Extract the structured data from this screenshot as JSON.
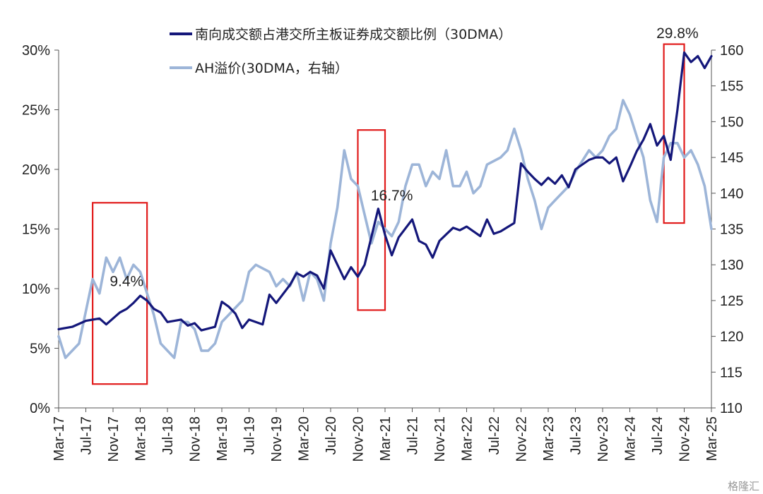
{
  "chart_data": {
    "type": "line",
    "x_ticks": [
      "Mar-17",
      "Jul-17",
      "Nov-17",
      "Mar-18",
      "Jul-18",
      "Nov-18",
      "Mar-19",
      "Jul-19",
      "Nov-19",
      "Mar-20",
      "Jul-20",
      "Nov-20",
      "Mar-21",
      "Jul-21",
      "Nov-21",
      "Mar-22",
      "Jul-22",
      "Nov-22",
      "Mar-23",
      "Jul-23",
      "Nov-23",
      "Mar-24",
      "Jul-24",
      "Nov-24",
      "Mar-25"
    ],
    "y_left": {
      "ylim": [
        0,
        30
      ],
      "ticks": [
        "0%",
        "5%",
        "10%",
        "15%",
        "20%",
        "25%",
        "30%"
      ]
    },
    "y_right": {
      "ylim": [
        110,
        160
      ],
      "ticks": [
        "110",
        "115",
        "120",
        "125",
        "130",
        "135",
        "140",
        "145",
        "150",
        "155",
        "160"
      ]
    },
    "series": [
      {
        "name": "南向成交额占港交所主板证券成交额比例（30DMA）",
        "axis": "left",
        "color": "#14177a",
        "points": [
          [
            "Mar-17",
            6.6
          ],
          [
            "May-17",
            6.8
          ],
          [
            "Jul-17",
            7.3
          ],
          [
            "Sep-17",
            7.5
          ],
          [
            "Oct-17",
            7.0
          ],
          [
            "Dec-17",
            8.0
          ],
          [
            "Jan-18",
            8.3
          ],
          [
            "Feb-18",
            8.8
          ],
          [
            "Mar-18",
            9.4
          ],
          [
            "Apr-18",
            9.0
          ],
          [
            "May-18",
            8.3
          ],
          [
            "Jun-18",
            8.0
          ],
          [
            "Jul-18",
            7.2
          ],
          [
            "Sep-18",
            7.4
          ],
          [
            "Oct-18",
            6.9
          ],
          [
            "Nov-18",
            7.1
          ],
          [
            "Dec-18",
            6.5
          ],
          [
            "Feb-19",
            6.8
          ],
          [
            "Mar-19",
            8.9
          ],
          [
            "Apr-19",
            8.5
          ],
          [
            "May-19",
            7.9
          ],
          [
            "Jun-19",
            6.7
          ],
          [
            "Jul-19",
            7.4
          ],
          [
            "Sep-19",
            7.0
          ],
          [
            "Oct-19",
            9.5
          ],
          [
            "Nov-19",
            8.8
          ],
          [
            "Jan-20",
            10.3
          ],
          [
            "Feb-20",
            11.3
          ],
          [
            "Mar-20",
            11.0
          ],
          [
            "Apr-20",
            11.4
          ],
          [
            "May-20",
            11.1
          ],
          [
            "Jun-20",
            10.0
          ],
          [
            "Jul-20",
            13.2
          ],
          [
            "Sep-20",
            10.8
          ],
          [
            "Oct-20",
            11.8
          ],
          [
            "Nov-20",
            11.0
          ],
          [
            "Dec-20",
            12.0
          ],
          [
            "Feb-21",
            16.7
          ],
          [
            "Mar-21",
            14.5
          ],
          [
            "Apr-21",
            12.8
          ],
          [
            "May-21",
            14.3
          ],
          [
            "Jul-21",
            15.8
          ],
          [
            "Aug-21",
            14.0
          ],
          [
            "Sep-21",
            13.7
          ],
          [
            "Oct-21",
            12.6
          ],
          [
            "Nov-21",
            14.0
          ],
          [
            "Jan-22",
            15.1
          ],
          [
            "Feb-22",
            14.9
          ],
          [
            "Mar-22",
            15.2
          ],
          [
            "May-22",
            14.4
          ],
          [
            "Jun-22",
            15.8
          ],
          [
            "Jul-22",
            14.6
          ],
          [
            "Aug-22",
            14.8
          ],
          [
            "Oct-22",
            15.5
          ],
          [
            "Nov-22",
            20.5
          ],
          [
            "Dec-22",
            19.8
          ],
          [
            "Jan-23",
            19.2
          ],
          [
            "Feb-23",
            18.7
          ],
          [
            "Mar-23",
            19.3
          ],
          [
            "Apr-23",
            18.8
          ],
          [
            "May-23",
            19.5
          ],
          [
            "Jun-23",
            18.5
          ],
          [
            "Jul-23",
            20.0
          ],
          [
            "Sep-23",
            20.8
          ],
          [
            "Oct-23",
            21.0
          ],
          [
            "Nov-23",
            21.0
          ],
          [
            "Dec-23",
            20.5
          ],
          [
            "Jan-24",
            21.0
          ],
          [
            "Feb-24",
            19.0
          ],
          [
            "Mar-24",
            20.2
          ],
          [
            "Apr-24",
            21.5
          ],
          [
            "May-24",
            22.5
          ],
          [
            "Jun-24",
            23.8
          ],
          [
            "Jul-24",
            22.0
          ],
          [
            "Aug-24",
            22.8
          ],
          [
            "Sep-24",
            20.8
          ],
          [
            "Oct-24",
            25.0
          ],
          [
            "Nov-24",
            29.8
          ],
          [
            "Dec-24",
            29.0
          ],
          [
            "Jan-25",
            29.5
          ],
          [
            "Feb-25",
            28.5
          ],
          [
            "Mar-25",
            29.5
          ]
        ]
      },
      {
        "name": "AH溢价(30DMA，右轴）",
        "axis": "right",
        "color": "#9db5d8",
        "points": [
          [
            "Mar-17",
            120
          ],
          [
            "Apr-17",
            117
          ],
          [
            "Jun-17",
            119
          ],
          [
            "Aug-17",
            128
          ],
          [
            "Sep-17",
            126
          ],
          [
            "Oct-17",
            131
          ],
          [
            "Nov-17",
            129
          ],
          [
            "Dec-17",
            131
          ],
          [
            "Jan-18",
            128
          ],
          [
            "Feb-18",
            130
          ],
          [
            "Mar-18",
            129
          ],
          [
            "May-18",
            123
          ],
          [
            "Jun-18",
            119
          ],
          [
            "Jul-18",
            118
          ],
          [
            "Aug-18",
            117
          ],
          [
            "Sep-18",
            122
          ],
          [
            "Oct-18",
            122
          ],
          [
            "Nov-18",
            121
          ],
          [
            "Dec-18",
            118
          ],
          [
            "Jan-19",
            118
          ],
          [
            "Feb-19",
            119
          ],
          [
            "Mar-19",
            122
          ],
          [
            "Apr-19",
            123
          ],
          [
            "May-19",
            124
          ],
          [
            "Jun-19",
            125
          ],
          [
            "Jul-19",
            129
          ],
          [
            "Aug-19",
            130
          ],
          [
            "Oct-19",
            129
          ],
          [
            "Nov-19",
            127
          ],
          [
            "Dec-19",
            128
          ],
          [
            "Jan-20",
            127
          ],
          [
            "Feb-20",
            129
          ],
          [
            "Mar-20",
            125
          ],
          [
            "Apr-20",
            129
          ],
          [
            "May-20",
            128
          ],
          [
            "Jun-20",
            125
          ],
          [
            "Jul-20",
            133
          ],
          [
            "Aug-20",
            138
          ],
          [
            "Sep-20",
            146
          ],
          [
            "Oct-20",
            142
          ],
          [
            "Nov-20",
            141
          ],
          [
            "Dec-20",
            137
          ],
          [
            "Jan-21",
            133
          ],
          [
            "Feb-21",
            136
          ],
          [
            "Apr-21",
            134
          ],
          [
            "May-21",
            136
          ],
          [
            "Jun-21",
            141
          ],
          [
            "Jul-21",
            144
          ],
          [
            "Aug-21",
            144
          ],
          [
            "Sep-21",
            141
          ],
          [
            "Oct-21",
            143
          ],
          [
            "Nov-21",
            142
          ],
          [
            "Dec-21",
            146
          ],
          [
            "Jan-22",
            141
          ],
          [
            "Feb-22",
            141
          ],
          [
            "Mar-22",
            143
          ],
          [
            "Apr-22",
            140
          ],
          [
            "May-22",
            141
          ],
          [
            "Jun-22",
            144
          ],
          [
            "Aug-22",
            145
          ],
          [
            "Sep-22",
            146
          ],
          [
            "Oct-22",
            149
          ],
          [
            "Nov-22",
            146
          ],
          [
            "Dec-22",
            142
          ],
          [
            "Jan-23",
            139
          ],
          [
            "Feb-23",
            135
          ],
          [
            "Mar-23",
            138
          ],
          [
            "Apr-23",
            139
          ],
          [
            "May-23",
            140
          ],
          [
            "Jun-23",
            141
          ],
          [
            "Jul-23",
            143
          ],
          [
            "Sep-23",
            146
          ],
          [
            "Oct-23",
            145
          ],
          [
            "Nov-23",
            146
          ],
          [
            "Dec-23",
            148
          ],
          [
            "Jan-24",
            149
          ],
          [
            "Feb-24",
            153
          ],
          [
            "Mar-24",
            151
          ],
          [
            "Apr-24",
            148
          ],
          [
            "May-24",
            145
          ],
          [
            "Jun-24",
            139
          ],
          [
            "Jul-24",
            136
          ],
          [
            "Aug-24",
            145
          ],
          [
            "Sep-24",
            147
          ],
          [
            "Oct-24",
            147
          ],
          [
            "Nov-24",
            145
          ],
          [
            "Dec-24",
            146
          ],
          [
            "Jan-25",
            144
          ],
          [
            "Feb-25",
            141
          ],
          [
            "Mar-25",
            135
          ]
        ]
      }
    ],
    "annotations": [
      {
        "text": "9.4%",
        "x": "Jan-18",
        "y": 10.2
      },
      {
        "text": "16.7%",
        "x": "Apr-21",
        "y": 17.4
      },
      {
        "text": "29.8%",
        "x": "Oct-24",
        "y": 31.0
      }
    ],
    "highlight_boxes": [
      {
        "x_from": "Aug-17",
        "x_to": "Apr-18",
        "y_from": 2.0,
        "y_to": 17.2
      },
      {
        "x_from": "Nov-20",
        "x_to": "Mar-21",
        "y_from": 8.2,
        "y_to": 23.3
      },
      {
        "x_from": "Aug-24",
        "x_to": "Nov-24",
        "y_from": 15.5,
        "y_to": 30.5
      }
    ],
    "legend_position": "top-center",
    "grid": false
  },
  "watermark": "格隆汇"
}
